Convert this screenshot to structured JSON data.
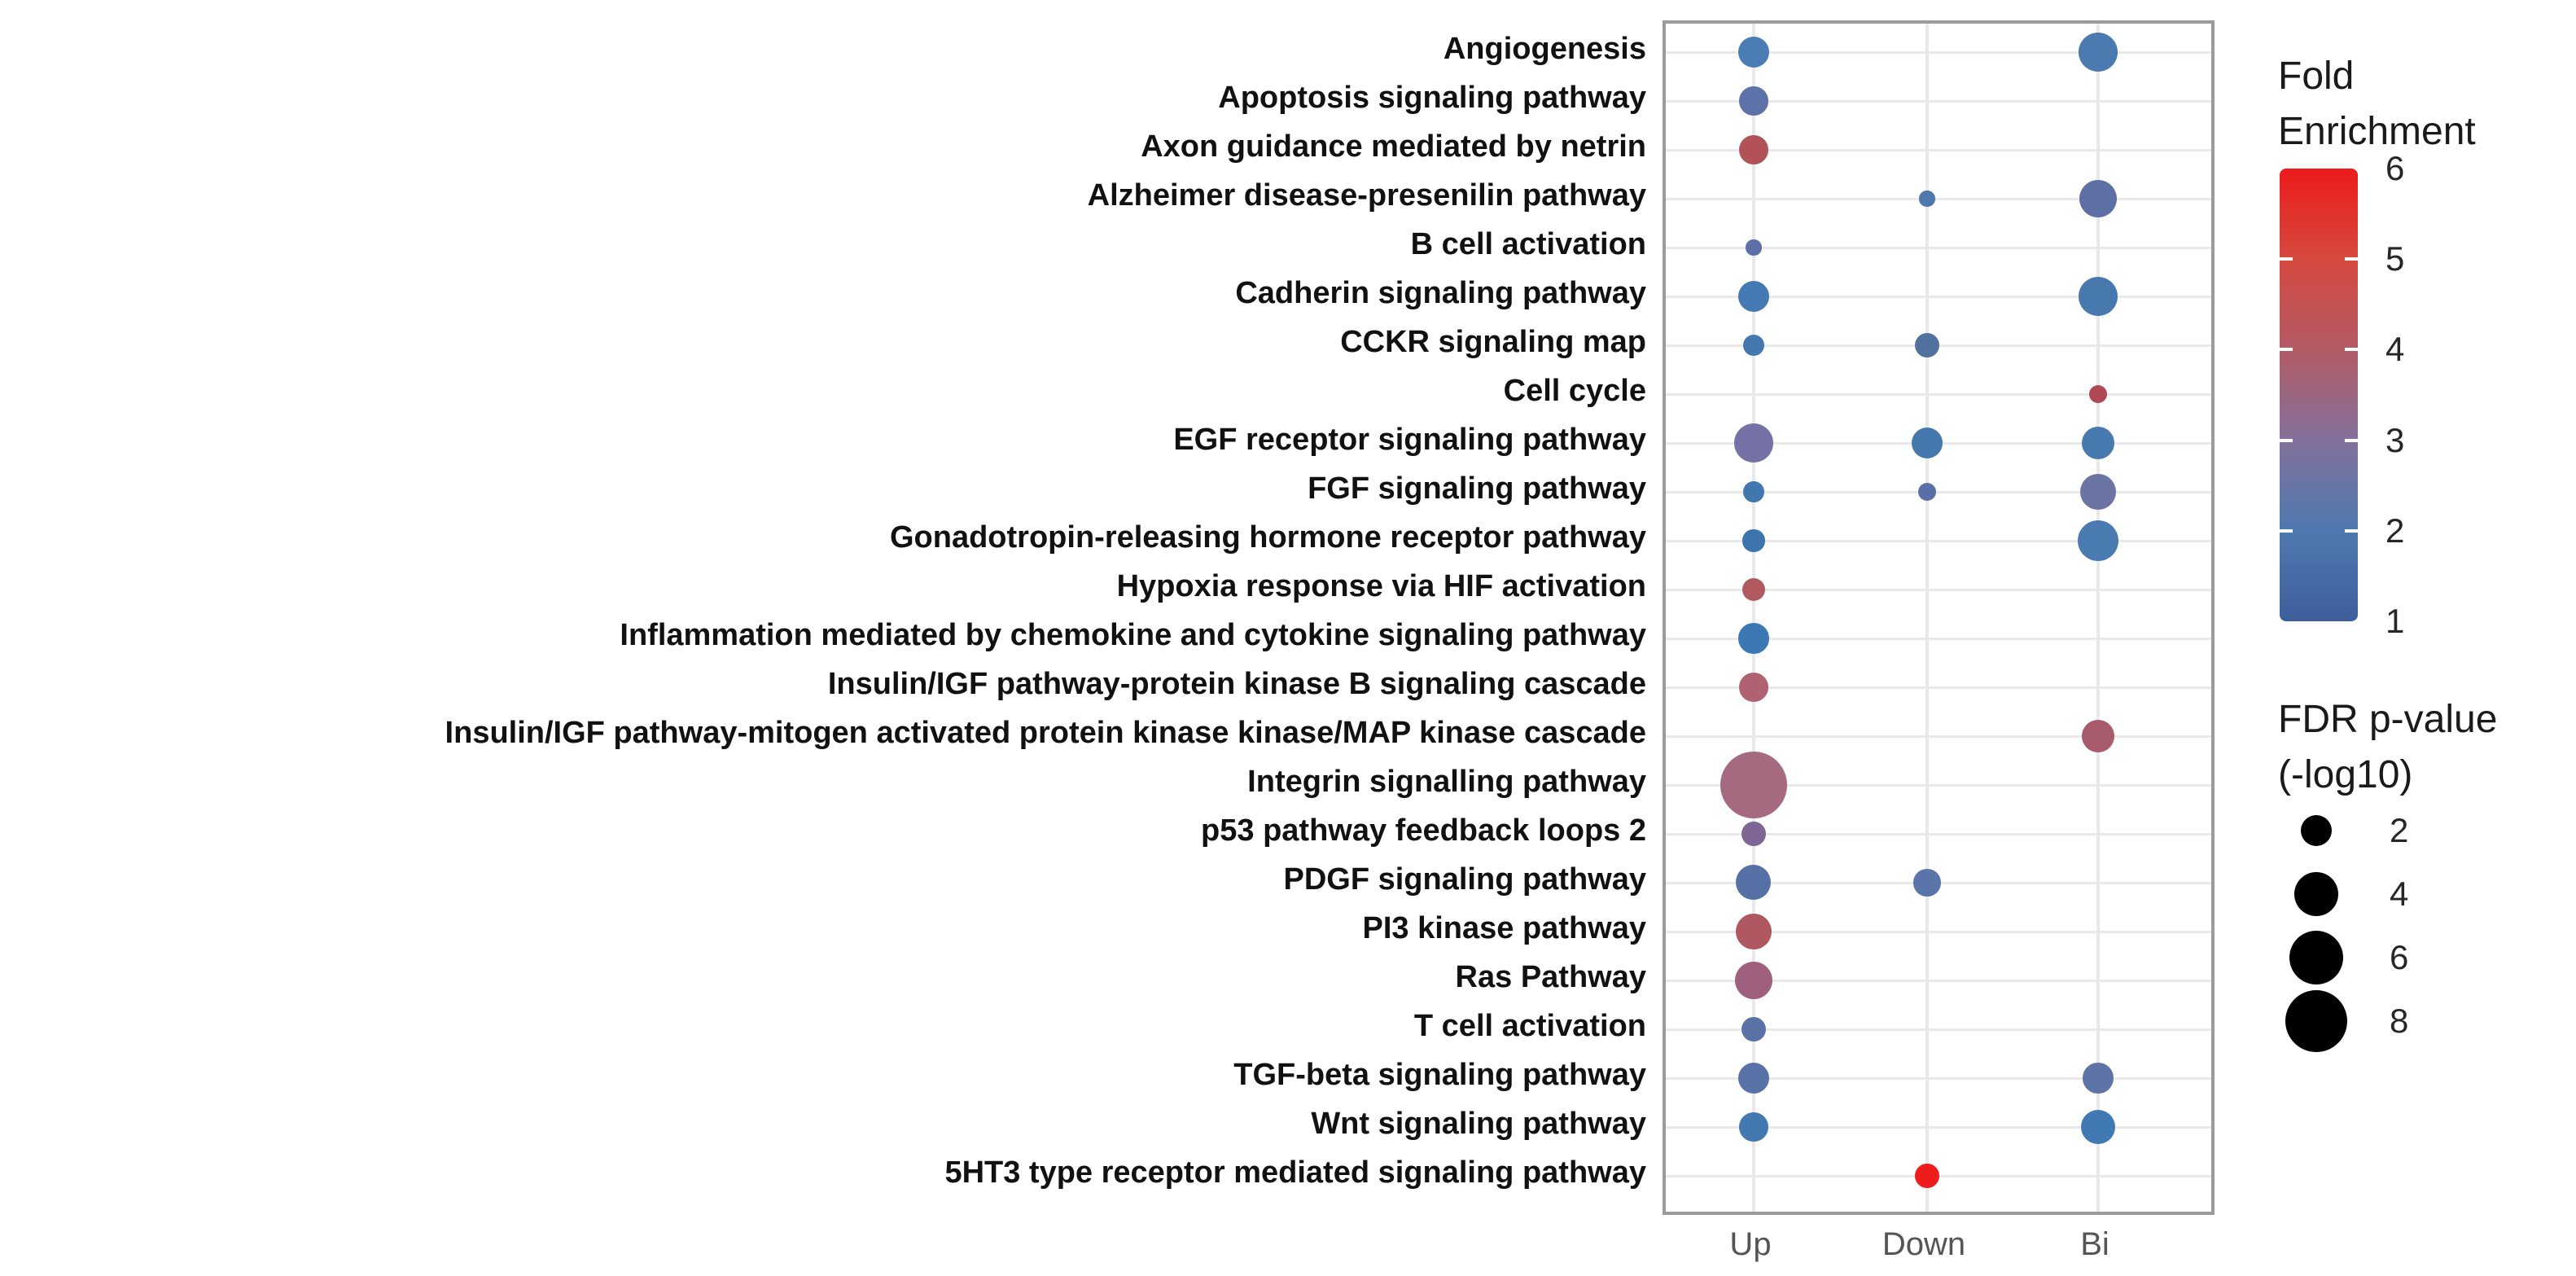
{
  "legend_fold": {
    "title_line1": "Fold",
    "title_line2": "Enrichment",
    "tick_labels": [
      6,
      5,
      4,
      3,
      2,
      1
    ],
    "gradient_top_to_bottom": [
      "#EC1B1B",
      "#D6493F",
      "#B35B66",
      "#83719B",
      "#4E79B0",
      "#3D5E9C"
    ]
  },
  "legend_fdr": {
    "title_line1": "FDR p-value",
    "title_line2": "(-log10)",
    "sizes": [
      2,
      4,
      6,
      8
    ],
    "dot_color": "#000000"
  },
  "chart_data": {
    "type": "scatter",
    "subtype": "bubble-dot-plot",
    "x_categories": [
      "Up",
      "Down",
      "Bi"
    ],
    "y_categories": [
      "Angiogenesis",
      "Apoptosis signaling pathway",
      "Axon guidance mediated by netrin",
      "Alzheimer disease-presenilin pathway",
      "B cell activation",
      "Cadherin signaling pathway",
      "CCKR signaling map",
      "Cell cycle",
      "EGF receptor signaling pathway",
      "FGF signaling pathway",
      "Gonadotropin-releasing hormone receptor pathway",
      "Hypoxia response via HIF activation",
      "Inflammation mediated by chemokine and cytokine signaling pathway",
      "Insulin/IGF pathway-protein kinase B signaling cascade",
      "Insulin/IGF pathway-mitogen activated protein kinase kinase/MAP kinase cascade",
      "Integrin signalling pathway",
      "p53 pathway feedback loops 2",
      "PDGF signaling pathway",
      "PI3 kinase pathway",
      "Ras Pathway",
      "T cell activation",
      "TGF-beta signaling pathway",
      "Wnt signaling pathway",
      "5HT3 type receptor mediated signaling pathway"
    ],
    "color_scale": {
      "label": "Fold Enrichment",
      "domain": [
        1,
        6
      ],
      "low_color": "#3D5E9C",
      "high_color": "#EC1B1B"
    },
    "size_scale": {
      "label": "FDR p-value (-log10)",
      "legend_values": [
        2,
        4,
        6,
        8
      ]
    },
    "grid": true,
    "points": [
      {
        "pathway": "Angiogenesis",
        "regulation": "Up",
        "fold_enrichment": 2.0,
        "fdr_neglog10": 2.0,
        "color": "#4A7CB5"
      },
      {
        "pathway": "Angiogenesis",
        "regulation": "Bi",
        "fold_enrichment": 1.8,
        "fdr_neglog10": 3.1,
        "color": "#4A7AAF"
      },
      {
        "pathway": "Apoptosis signaling pathway",
        "regulation": "Up",
        "fold_enrichment": 2.5,
        "fdr_neglog10": 1.7,
        "color": "#5E72AA"
      },
      {
        "pathway": "Axon guidance mediated by netrin",
        "regulation": "Up",
        "fold_enrichment": 4.3,
        "fdr_neglog10": 1.7,
        "color": "#B25258"
      },
      {
        "pathway": "Alzheimer disease-presenilin pathway",
        "regulation": "Down",
        "fold_enrichment": 2.0,
        "fdr_neglog10": 0.5,
        "color": "#4E79AE"
      },
      {
        "pathway": "Alzheimer disease-presenilin pathway",
        "regulation": "Bi",
        "fold_enrichment": 2.5,
        "fdr_neglog10": 2.9,
        "color": "#5E6FA5"
      },
      {
        "pathway": "B cell activation",
        "regulation": "Up",
        "fold_enrichment": 2.5,
        "fdr_neglog10": 0.5,
        "color": "#5C6FA6"
      },
      {
        "pathway": "Cadherin signaling pathway",
        "regulation": "Up",
        "fold_enrichment": 2.0,
        "fdr_neglog10": 2.0,
        "color": "#4579B3"
      },
      {
        "pathway": "Cadherin signaling pathway",
        "regulation": "Bi",
        "fold_enrichment": 2.0,
        "fdr_neglog10": 3.1,
        "color": "#4779AF"
      },
      {
        "pathway": "CCKR signaling map",
        "regulation": "Up",
        "fold_enrichment": 2.0,
        "fdr_neglog10": 0.9,
        "color": "#4478AF"
      },
      {
        "pathway": "CCKR signaling map",
        "regulation": "Down",
        "fold_enrichment": 2.4,
        "fdr_neglog10": 1.2,
        "color": "#53719F"
      },
      {
        "pathway": "Cell cycle",
        "regulation": "Bi",
        "fold_enrichment": 4.5,
        "fdr_neglog10": 0.7,
        "color": "#AF4A55"
      },
      {
        "pathway": "EGF receptor signaling pathway",
        "regulation": "Up",
        "fold_enrichment": 3.0,
        "fdr_neglog10": 3.1,
        "color": "#7772A6"
      },
      {
        "pathway": "EGF receptor signaling pathway",
        "regulation": "Down",
        "fold_enrichment": 2.0,
        "fdr_neglog10": 2.0,
        "color": "#4578AC"
      },
      {
        "pathway": "EGF receptor signaling pathway",
        "regulation": "Bi",
        "fold_enrichment": 2.0,
        "fdr_neglog10": 2.2,
        "color": "#477AAE"
      },
      {
        "pathway": "FGF signaling pathway",
        "regulation": "Up",
        "fold_enrichment": 2.0,
        "fdr_neglog10": 0.9,
        "color": "#4177AE"
      },
      {
        "pathway": "FGF signaling pathway",
        "regulation": "Down",
        "fold_enrichment": 2.5,
        "fdr_neglog10": 0.7,
        "color": "#5A6FA5"
      },
      {
        "pathway": "FGF signaling pathway",
        "regulation": "Bi",
        "fold_enrichment": 2.8,
        "fdr_neglog10": 2.7,
        "color": "#6C74A4"
      },
      {
        "pathway": "Gonadotropin-releasing hormone receptor pathway",
        "regulation": "Up",
        "fold_enrichment": 2.0,
        "fdr_neglog10": 1.0,
        "color": "#3E74AD"
      },
      {
        "pathway": "Gonadotropin-releasing hormone receptor pathway",
        "regulation": "Bi",
        "fold_enrichment": 1.9,
        "fdr_neglog10": 3.5,
        "color": "#4A7BB0"
      },
      {
        "pathway": "Hypoxia response via HIF activation",
        "regulation": "Up",
        "fold_enrichment": 4.2,
        "fdr_neglog10": 1.1,
        "color": "#B05A60"
      },
      {
        "pathway": "Inflammation mediated by chemokine and cytokine signaling pathway",
        "regulation": "Up",
        "fold_enrichment": 1.8,
        "fdr_neglog10": 1.9,
        "color": "#3C78B4"
      },
      {
        "pathway": "Insulin/IGF pathway-protein kinase B signaling cascade",
        "regulation": "Up",
        "fold_enrichment": 4.0,
        "fdr_neglog10": 1.7,
        "color": "#B06272"
      },
      {
        "pathway": "Insulin/IGF pathway-mitogen activated protein kinase kinase/MAP kinase cascade",
        "regulation": "Bi",
        "fold_enrichment": 3.9,
        "fdr_neglog10": 2.2,
        "color": "#A85B6B"
      },
      {
        "pathway": "Integrin signalling pathway",
        "regulation": "Up",
        "fold_enrichment": 3.7,
        "fdr_neglog10": 9.3,
        "color": "#A66A80"
      },
      {
        "pathway": "p53 pathway feedback loops 2",
        "regulation": "Up",
        "fold_enrichment": 3.2,
        "fdr_neglog10": 1.2,
        "color": "#7F6795"
      },
      {
        "pathway": "PDGF signaling pathway",
        "regulation": "Up",
        "fold_enrichment": 2.5,
        "fdr_neglog10": 2.5,
        "color": "#5671A5"
      },
      {
        "pathway": "PDGF signaling pathway",
        "regulation": "Down",
        "fold_enrichment": 2.5,
        "fdr_neglog10": 1.5,
        "color": "#5B74A9"
      },
      {
        "pathway": "PI3 kinase pathway",
        "regulation": "Up",
        "fold_enrichment": 4.3,
        "fdr_neglog10": 2.7,
        "color": "#AF5862"
      },
      {
        "pathway": "Ras Pathway",
        "regulation": "Up",
        "fold_enrichment": 3.6,
        "fdr_neglog10": 2.9,
        "color": "#9E607D"
      },
      {
        "pathway": "T cell activation",
        "regulation": "Up",
        "fold_enrichment": 2.5,
        "fdr_neglog10": 1.2,
        "color": "#5A72A5"
      },
      {
        "pathway": "TGF-beta signaling pathway",
        "regulation": "Up",
        "fold_enrichment": 2.4,
        "fdr_neglog10": 2.0,
        "color": "#5973A8"
      },
      {
        "pathway": "TGF-beta signaling pathway",
        "regulation": "Bi",
        "fold_enrichment": 2.5,
        "fdr_neglog10": 1.9,
        "color": "#5E74A7"
      },
      {
        "pathway": "Wnt signaling pathway",
        "regulation": "Up",
        "fold_enrichment": 1.9,
        "fdr_neglog10": 1.7,
        "color": "#4378B0"
      },
      {
        "pathway": "Wnt signaling pathway",
        "regulation": "Bi",
        "fold_enrichment": 1.8,
        "fdr_neglog10": 2.4,
        "color": "#4179B3"
      },
      {
        "pathway": "5HT3 type receptor mediated signaling pathway",
        "regulation": "Down",
        "fold_enrichment": 6.0,
        "fdr_neglog10": 1.2,
        "color": "#EE1C1C"
      }
    ]
  }
}
